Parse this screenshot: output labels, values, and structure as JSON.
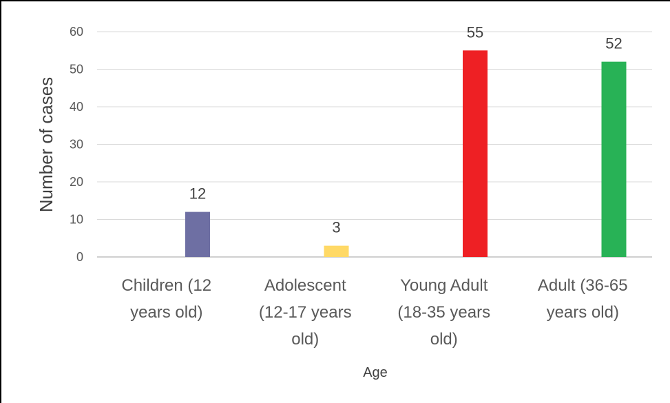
{
  "chart_data": {
    "type": "bar",
    "categories": [
      [
        "Children (12",
        "years old)"
      ],
      [
        "Adolescent",
        "(12-17 years",
        "old)"
      ],
      [
        "Young Adult",
        "(18-35 years",
        "old)"
      ],
      [
        "Adult (36-65",
        "years old)"
      ]
    ],
    "values": [
      12,
      3,
      55,
      52
    ],
    "data_labels": [
      "12",
      "3",
      "55",
      "52"
    ],
    "bar_colors": [
      "#6e6fa3",
      "#ffd966",
      "#ee2024",
      "#28b256"
    ],
    "xlabel": "Age",
    "ylabel": "Number of cases",
    "ylim": [
      0,
      60
    ],
    "yticks": [
      0,
      10,
      20,
      30,
      40,
      50,
      60
    ],
    "grid": true,
    "legend": "none"
  }
}
